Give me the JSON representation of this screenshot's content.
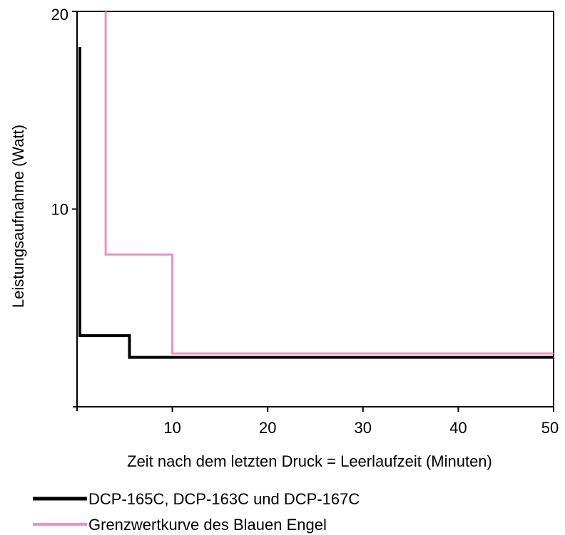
{
  "chart_data": {
    "type": "line",
    "xlabel": "Zeit nach dem letzten Druck = Leerlaufzeit (Minuten)",
    "ylabel": "Leistungsaufnahme (Watt)",
    "xlim": [
      0,
      50
    ],
    "ylim": [
      0,
      20
    ],
    "x_ticks": [
      10,
      20,
      30,
      40,
      50
    ],
    "y_ticks": [
      10,
      20
    ],
    "grid": false,
    "legend_position": "bottom-left",
    "step": true,
    "series": [
      {
        "name": "DCP-165C, DCP-163C und DCP-167C",
        "color": "#000000",
        "x": [
          0.3,
          0.3,
          5.5,
          5.5,
          50
        ],
        "y": [
          18.2,
          3.6,
          3.6,
          2.5,
          2.5
        ]
      },
      {
        "name": "Grenzwertkurve des Blauen Engel",
        "color": "#f48fc0",
        "x": [
          3,
          3,
          10,
          10,
          50
        ],
        "y": [
          20,
          7.7,
          7.7,
          2.7,
          2.7
        ]
      }
    ]
  }
}
